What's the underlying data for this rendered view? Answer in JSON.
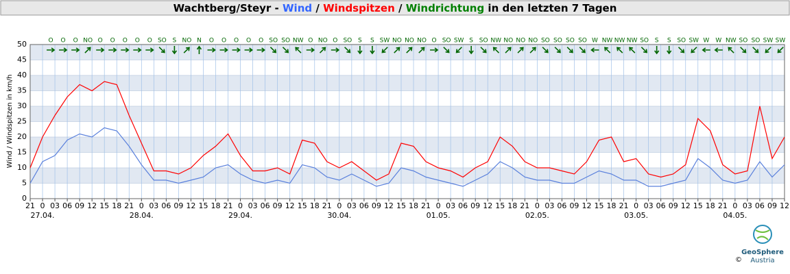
{
  "chart_data": {
    "type": "line",
    "title_parts": [
      {
        "text": "Wachtberg/Steyr",
        "color": "#000000"
      },
      {
        "text": "-",
        "color": "#000000"
      },
      {
        "text": "Wind",
        "color": "#3366ff"
      },
      {
        "text": "/",
        "color": "#000000"
      },
      {
        "text": "Windspitzen",
        "color": "#ff0000"
      },
      {
        "text": "/",
        "color": "#000000"
      },
      {
        "text": "Windrichtung",
        "color": "#008000"
      },
      {
        "text": "in den letzten 7 Tagen",
        "color": "#000000"
      }
    ],
    "y_label": "Wind / Windspitzen in km/h",
    "x": [
      0,
      3,
      6,
      9,
      12,
      15,
      18,
      21,
      24,
      27,
      30,
      33,
      36,
      39,
      42,
      45,
      48,
      51,
      54,
      57,
      60,
      63,
      66,
      69,
      72,
      75,
      78,
      81,
      84,
      87,
      90,
      93,
      96,
      99,
      102,
      105,
      108,
      111,
      114,
      117,
      120,
      123,
      126,
      129,
      132,
      135,
      138,
      141,
      144,
      147,
      150,
      153,
      156,
      159,
      162,
      165,
      168,
      171,
      174,
      177,
      180,
      183
    ],
    "series": [
      {
        "name": "Wind",
        "color": "#5a80dc",
        "values": [
          5,
          12,
          14,
          19,
          21,
          20,
          23,
          22,
          17,
          11,
          6,
          6,
          5,
          6,
          7,
          10,
          11,
          8,
          6,
          5,
          6,
          5,
          11,
          10,
          7,
          6,
          8,
          6,
          4,
          5,
          10,
          9,
          7,
          6,
          5,
          4,
          6,
          8,
          12,
          10,
          7,
          6,
          6,
          5,
          5,
          7,
          9,
          8,
          6,
          6,
          4,
          4,
          5,
          6,
          13,
          10,
          6,
          5,
          6,
          12,
          7,
          11
        ]
      },
      {
        "name": "Windspitzen",
        "color": "#ff0000",
        "values": [
          10,
          20,
          27,
          33,
          37,
          35,
          38,
          37,
          27,
          18,
          9,
          9,
          8,
          10,
          14,
          17,
          21,
          14,
          9,
          9,
          10,
          8,
          19,
          18,
          12,
          10,
          12,
          9,
          6,
          8,
          18,
          17,
          12,
          10,
          9,
          7,
          10,
          12,
          20,
          17,
          12,
          10,
          10,
          9,
          8,
          12,
          19,
          20,
          12,
          13,
          8,
          7,
          8,
          11,
          26,
          22,
          11,
          8,
          9,
          30,
          13,
          20
        ]
      }
    ],
    "xlim": [
      0,
      183
    ],
    "xticks": [
      {
        "value": 0,
        "label": "21"
      },
      {
        "value": 3,
        "label": "0"
      },
      {
        "value": 6,
        "label": "03"
      },
      {
        "value": 9,
        "label": "06"
      },
      {
        "value": 12,
        "label": "09"
      },
      {
        "value": 15,
        "label": "12"
      },
      {
        "value": 18,
        "label": "15"
      },
      {
        "value": 21,
        "label": "18"
      },
      {
        "value": 24,
        "label": "21"
      },
      {
        "value": 27,
        "label": "0"
      },
      {
        "value": 30,
        "label": "03"
      },
      {
        "value": 33,
        "label": "06"
      },
      {
        "value": 36,
        "label": "09"
      },
      {
        "value": 39,
        "label": "12"
      },
      {
        "value": 42,
        "label": "15"
      },
      {
        "value": 45,
        "label": "18"
      },
      {
        "value": 48,
        "label": "21"
      },
      {
        "value": 51,
        "label": "0"
      },
      {
        "value": 54,
        "label": "03"
      },
      {
        "value": 57,
        "label": "06"
      },
      {
        "value": 60,
        "label": "09"
      },
      {
        "value": 63,
        "label": "12"
      },
      {
        "value": 66,
        "label": "15"
      },
      {
        "value": 69,
        "label": "18"
      },
      {
        "value": 72,
        "label": "21"
      },
      {
        "value": 75,
        "label": "0"
      },
      {
        "value": 78,
        "label": "03"
      },
      {
        "value": 81,
        "label": "06"
      },
      {
        "value": 84,
        "label": "09"
      },
      {
        "value": 87,
        "label": "12"
      },
      {
        "value": 90,
        "label": "15"
      },
      {
        "value": 93,
        "label": "18"
      },
      {
        "value": 96,
        "label": "21"
      },
      {
        "value": 99,
        "label": "0"
      },
      {
        "value": 102,
        "label": "03"
      },
      {
        "value": 105,
        "label": "06"
      },
      {
        "value": 108,
        "label": "09"
      },
      {
        "value": 111,
        "label": "12"
      },
      {
        "value": 114,
        "label": "15"
      },
      {
        "value": 117,
        "label": "18"
      },
      {
        "value": 120,
        "label": "21"
      },
      {
        "value": 123,
        "label": "0"
      },
      {
        "value": 126,
        "label": "03"
      },
      {
        "value": 129,
        "label": "06"
      },
      {
        "value": 132,
        "label": "09"
      },
      {
        "value": 135,
        "label": "12"
      },
      {
        "value": 138,
        "label": "15"
      },
      {
        "value": 141,
        "label": "18"
      },
      {
        "value": 144,
        "label": "21"
      },
      {
        "value": 147,
        "label": "0"
      },
      {
        "value": 150,
        "label": "03"
      },
      {
        "value": 153,
        "label": "06"
      },
      {
        "value": 156,
        "label": "09"
      },
      {
        "value": 159,
        "label": "12"
      },
      {
        "value": 162,
        "label": "15"
      },
      {
        "value": 165,
        "label": "18"
      },
      {
        "value": 168,
        "label": "21"
      },
      {
        "value": 171,
        "label": "0"
      },
      {
        "value": 174,
        "label": "03"
      },
      {
        "value": 177,
        "label": "06"
      },
      {
        "value": 180,
        "label": "09"
      },
      {
        "value": 183,
        "label": "12"
      }
    ],
    "date_labels": [
      {
        "value": 3,
        "label": "27.04."
      },
      {
        "value": 27,
        "label": "28.04."
      },
      {
        "value": 51,
        "label": "29.04."
      },
      {
        "value": 75,
        "label": "30.04."
      },
      {
        "value": 99,
        "label": "01.05."
      },
      {
        "value": 123,
        "label": "02.05."
      },
      {
        "value": 147,
        "label": "03.05."
      },
      {
        "value": 171,
        "label": "04.05."
      }
    ],
    "ylim": [
      0,
      50
    ],
    "yticks": [
      0,
      5,
      10,
      15,
      20,
      25,
      30,
      35,
      40,
      45,
      50
    ],
    "grid": true,
    "direction_x": [
      5,
      8,
      11,
      14,
      17,
      20,
      23,
      26,
      29,
      32,
      35,
      38,
      41,
      44,
      47,
      50,
      53,
      56,
      59,
      62,
      65,
      68,
      71,
      74,
      77,
      80,
      83,
      86,
      89,
      92,
      95,
      98,
      101,
      104,
      107,
      110,
      113,
      116,
      119,
      122,
      125,
      128,
      131,
      134,
      137,
      140,
      143,
      146,
      149,
      152,
      155,
      158,
      161,
      164,
      167,
      170,
      173,
      176,
      179,
      182
    ],
    "directions": [
      "O",
      "O",
      "O",
      "NO",
      "O",
      "O",
      "O",
      "O",
      "O",
      "SO",
      "S",
      "NO",
      "N",
      "O",
      "O",
      "O",
      "O",
      "O",
      "SO",
      "SO",
      "NW",
      "O",
      "NO",
      "O",
      "SO",
      "S",
      "S",
      "SW",
      "NO",
      "NO",
      "NO",
      "O",
      "SO",
      "SW",
      "S",
      "SO",
      "NW",
      "NO",
      "NO",
      "NO",
      "SO",
      "SO",
      "SO",
      "SO",
      "W",
      "NW",
      "NW",
      "NW",
      "SO",
      "S",
      "S",
      "SO",
      "SW",
      "W",
      "W",
      "NW",
      "SO",
      "SO",
      "SW",
      "SW"
    ],
    "direction_color": "#006600",
    "logo": {
      "name": "GeoSphere",
      "sub": "Austria",
      "copyright": "©"
    }
  }
}
